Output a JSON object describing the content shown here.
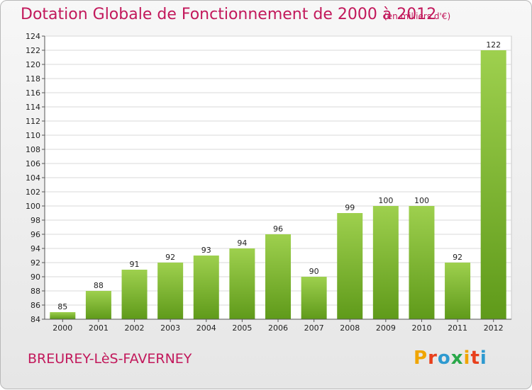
{
  "header": {
    "title": "Dotation Globale de Fonctionnement de 2000 à 2012",
    "subtitle": "(en milliers d'€)"
  },
  "footer": {
    "commune": "BREUREY-LèS-FAVERNEY",
    "logo": {
      "letters": [
        "P",
        "r",
        "o",
        "x",
        "i",
        "t",
        "i"
      ],
      "colors": [
        "#f0a500",
        "#e8401c",
        "#2e9ad0",
        "#2aa84a",
        "#f0a500",
        "#e8401c",
        "#2e9ad0"
      ]
    }
  },
  "chart_data": {
    "type": "bar",
    "categories": [
      "2000",
      "2001",
      "2002",
      "2003",
      "2004",
      "2005",
      "2006",
      "2007",
      "2008",
      "2009",
      "2010",
      "2011",
      "2012"
    ],
    "values": [
      85,
      88,
      91,
      92,
      93,
      94,
      96,
      90,
      99,
      100,
      100,
      92,
      122
    ],
    "data_labels": [
      "85",
      "88",
      "91",
      "92",
      "93",
      "94",
      "96",
      "90",
      "99",
      "100",
      "100",
      "92",
      "122"
    ],
    "ylim": [
      84,
      124
    ],
    "yticks": [
      84,
      86,
      88,
      90,
      92,
      94,
      96,
      98,
      100,
      102,
      104,
      106,
      108,
      110,
      112,
      114,
      116,
      118,
      120,
      122,
      124
    ],
    "grid": true,
    "bar_color_top": "#9ed04e",
    "bar_color_bottom": "#5f9a1a",
    "title_color": "#c2185b"
  }
}
